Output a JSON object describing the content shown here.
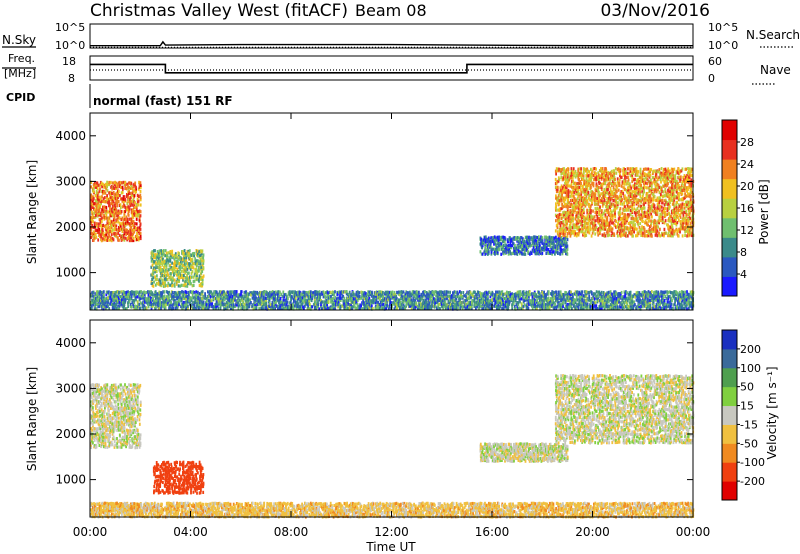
{
  "header": {
    "title": "Christmas Valley West (fitACF)",
    "beam": "Beam 08",
    "date": "03/Nov/2016"
  },
  "top_panels": {
    "nsky_label": "N.Sky",
    "nsearch_label": "N.Search",
    "freq_label_line1": "Freq.",
    "freq_label_line2": "[MHz]",
    "nave_label": "Nave",
    "cpid_label": "CPID",
    "cpid_text": "normal (fast) 151 RF",
    "noise_ticks_left": [
      "10^5",
      "10^0"
    ],
    "noise_ticks_right": [
      "10^5",
      "10^0"
    ],
    "freq_ticks": [
      "18",
      "8"
    ],
    "nave_ticks": [
      "60",
      "0"
    ]
  },
  "axes": {
    "ylabel": "Slant Range [km]",
    "yticks": [
      "4000",
      "3000",
      "2000",
      "1000"
    ],
    "xticks": [
      "00:00",
      "04:00",
      "08:00",
      "12:00",
      "16:00",
      "20:00",
      "00:00"
    ],
    "xlabel": "Time UT"
  },
  "colorbars": {
    "power": {
      "label": "Power [dB]",
      "ticks": [
        "28",
        "24",
        "20",
        "16",
        "12",
        "8",
        "4"
      ],
      "colors": [
        "#1a1aff",
        "#2a58c0",
        "#3a8a8a",
        "#6fbf6f",
        "#b8d040",
        "#f0c020",
        "#f08020",
        "#e83020",
        "#e00000"
      ]
    },
    "velocity": {
      "label": "Velocity [m s⁻¹]",
      "ticks": [
        "200",
        "100",
        "50",
        "15",
        "-15",
        "-50",
        "-100",
        "-200"
      ],
      "colors": [
        "#1a30c0",
        "#3a6a9a",
        "#4f9f4f",
        "#80d040",
        "#c8c8c0",
        "#f0c040",
        "#f08a20",
        "#f04010",
        "#e00000"
      ]
    }
  },
  "chart_data": [
    {
      "type": "line",
      "title": "N.Sky / N.Search",
      "y_scale": "log",
      "ylim": [
        1,
        100000
      ],
      "x_range_hours": [
        0,
        24
      ],
      "series": [
        {
          "name": "N.Sky",
          "x": [
            0,
            2.8,
            2.9,
            3.0,
            6,
            12,
            15,
            20,
            24
          ],
          "y": [
            3,
            3,
            20,
            4,
            5,
            5,
            4,
            3,
            3
          ]
        },
        {
          "name": "N.Search",
          "x": [
            0,
            24
          ],
          "y": [
            3,
            3
          ]
        }
      ]
    },
    {
      "type": "line",
      "title": "Freq. / Nave",
      "ylim_freq_mhz": [
        8,
        18
      ],
      "ylim_nave": [
        0,
        60
      ],
      "x_range_hours": [
        0,
        24
      ],
      "series": [
        {
          "name": "Freq.",
          "x": [
            0,
            3,
            3,
            15,
            15,
            24
          ],
          "y": [
            14.5,
            14.5,
            11,
            11,
            14.5,
            14.5
          ]
        },
        {
          "name": "Nave",
          "x": [
            0,
            24
          ],
          "y": [
            25,
            25
          ]
        }
      ]
    },
    {
      "type": "heatmap",
      "title": "Power [dB]",
      "x_range_hours": [
        0,
        24
      ],
      "ylim_km": [
        180,
        4500
      ],
      "zlim": [
        0,
        32
      ],
      "regions": [
        {
          "t": [
            0,
            2.0
          ],
          "r": [
            1700,
            3000
          ],
          "value": 26
        },
        {
          "t": [
            2.4,
            4.5
          ],
          "r": [
            700,
            1500
          ],
          "value": 16
        },
        {
          "t": [
            0,
            24
          ],
          "r": [
            200,
            600
          ],
          "value": 10
        },
        {
          "t": [
            15.5,
            19
          ],
          "r": [
            1400,
            1800
          ],
          "value": 8
        },
        {
          "t": [
            18.5,
            24
          ],
          "r": [
            1800,
            3300
          ],
          "value": 24
        }
      ]
    },
    {
      "type": "heatmap",
      "title": "Velocity [m s⁻¹]",
      "x_range_hours": [
        0,
        24
      ],
      "ylim_km": [
        180,
        4500
      ],
      "zlim": [
        -250,
        250
      ],
      "regions": [
        {
          "t": [
            0,
            2.0
          ],
          "r": [
            1700,
            3100
          ],
          "value": 0
        },
        {
          "t": [
            2.5,
            4.5
          ],
          "r": [
            700,
            1400
          ],
          "value": -150
        },
        {
          "t": [
            0.3,
            2.0
          ],
          "r": [
            300,
            500
          ],
          "value": -40
        },
        {
          "t": [
            0,
            24
          ],
          "r": [
            180,
            500
          ],
          "value": -30
        },
        {
          "t": [
            15.5,
            19
          ],
          "r": [
            1400,
            1800
          ],
          "value": 0
        },
        {
          "t": [
            18.5,
            24
          ],
          "r": [
            1800,
            3300
          ],
          "value": 0
        }
      ]
    }
  ]
}
